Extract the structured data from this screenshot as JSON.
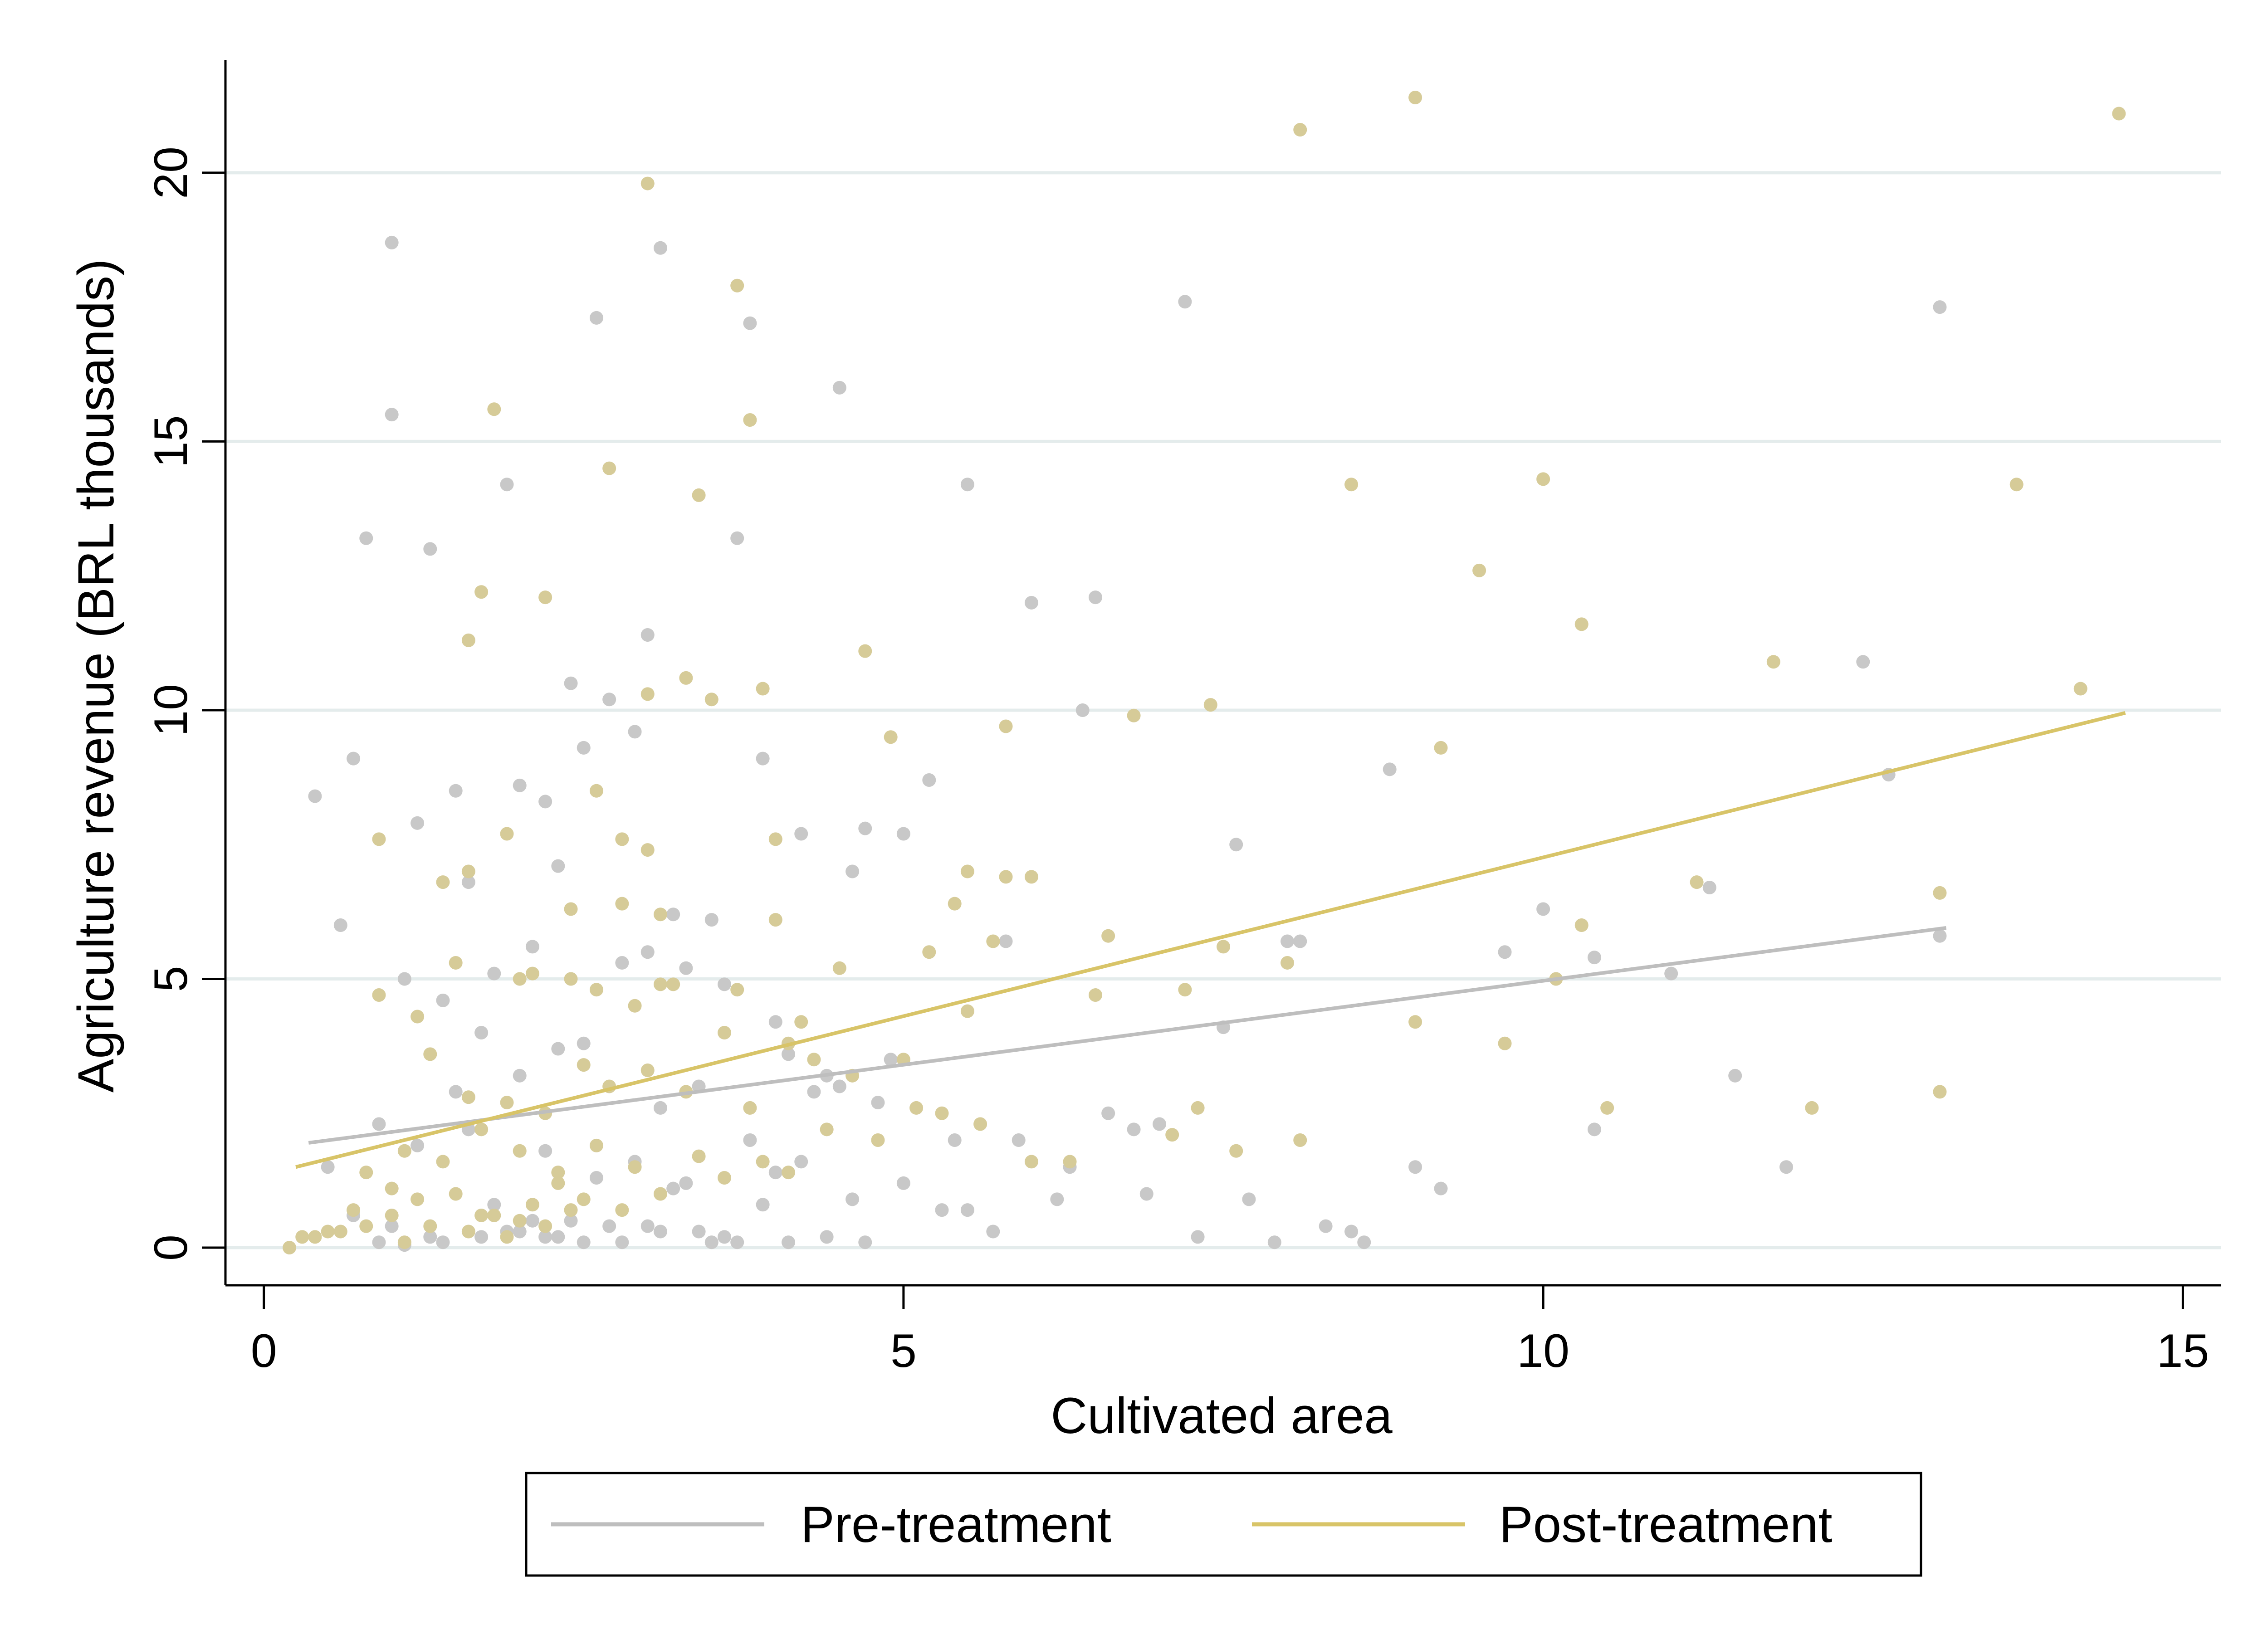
{
  "chart_data": {
    "type": "scatter",
    "xlabel": "Cultivated area",
    "ylabel": "Agriculture revenue (BRL thousands)",
    "xlim": [
      -0.3,
      15.3
    ],
    "ylim": [
      -0.7,
      22.1
    ],
    "x_ticks": [
      0,
      5,
      10,
      15
    ],
    "y_ticks": [
      0,
      5,
      10,
      15,
      20
    ],
    "grid": "horizontal",
    "legend_position": "bottom",
    "colors": {
      "pre": "#c8c8c8",
      "pre_line": "#bebebe",
      "post": "#d6cb98",
      "post_line": "#d8c468",
      "grid": "#e4ecec",
      "axis": "#000000"
    },
    "series": [
      {
        "name": "Pre-treatment",
        "fit_line": {
          "x": [
            0.35,
            13.15
          ],
          "y": [
            1.95,
            5.95
          ]
        },
        "x": [
          1.0,
          1.0,
          3.1,
          2.6,
          4.5,
          3.8,
          5.5,
          0.8,
          1.3,
          1.9,
          3.0,
          2.9,
          2.0,
          1.6,
          0.4,
          0.6,
          0.7,
          1.2,
          1.5,
          2.3,
          2.7,
          3.2,
          3.5,
          2.5,
          2.2,
          3.7,
          3.9,
          4.2,
          4.6,
          4.7,
          5.0,
          5.2,
          6.0,
          6.5,
          6.4,
          7.2,
          7.6,
          8.0,
          8.8,
          9.2,
          9.7,
          10.0,
          10.4,
          11.0,
          11.3,
          11.9,
          12.5,
          12.7,
          13.1,
          13.1,
          2.4,
          1.8,
          1.1,
          0.9,
          2.1,
          3.3,
          4.0,
          4.4,
          4.9,
          5.8,
          6.6,
          7.0,
          7.5,
          8.1,
          8.6,
          9.0,
          10.4,
          11.5,
          1.4,
          2.8,
          3.6,
          4.1,
          5.4,
          0.5,
          1.7,
          2.3,
          3.0,
          3.4,
          4.3,
          4.8,
          5.9,
          6.8,
          1.5,
          2.0,
          2.5,
          3.1,
          3.8,
          4.5,
          0.7,
          1.2,
          1.6,
          2.2,
          2.9,
          3.3,
          4.0,
          4.6,
          5.5,
          6.2,
          6.9,
          7.7,
          8.3,
          1.0,
          1.8,
          2.4,
          2.6,
          3.2,
          3.9,
          4.2,
          5.0,
          5.7,
          6.3,
          7.3,
          7.9,
          8.5,
          1.3,
          1.9,
          2.1,
          2.7,
          3.5,
          4.4,
          0.9,
          1.4,
          2.0,
          2.3,
          2.8,
          3.0,
          3.6,
          4.1,
          4.7,
          5.3,
          1.1,
          1.7,
          2.2,
          2.5,
          3.1,
          3.4,
          3.7
        ],
        "y": [
          18.7,
          15.5,
          18.6,
          17.3,
          16.0,
          17.2,
          14.2,
          13.2,
          13.0,
          14.2,
          11.4,
          9.6,
          8.6,
          6.8,
          8.4,
          6.0,
          9.1,
          7.9,
          8.5,
          7.1,
          10.2,
          6.2,
          6.1,
          9.3,
          8.3,
          13.2,
          9.1,
          7.7,
          7.0,
          7.8,
          7.7,
          8.7,
          12.0,
          12.1,
          10.0,
          17.6,
          7.5,
          5.7,
          8.9,
          1.1,
          5.5,
          6.3,
          2.2,
          5.1,
          6.7,
          1.5,
          10.9,
          8.8,
          17.5,
          5.8,
          10.5,
          5.1,
          5.0,
          2.3,
          5.6,
          5.2,
          4.2,
          3.2,
          3.5,
          5.7,
          2.5,
          2.3,
          4.1,
          5.7,
          0.1,
          1.5,
          5.4,
          3.2,
          4.6,
          5.3,
          4.9,
          3.6,
          2.0,
          1.5,
          4.0,
          3.7,
          5.5,
          3.0,
          2.9,
          2.7,
          2.0,
          2.2,
          2.9,
          3.2,
          3.8,
          2.6,
          2.0,
          3.0,
          0.6,
          1.9,
          2.2,
          1.8,
          1.6,
          1.2,
          1.4,
          0.9,
          0.7,
          0.9,
          1.0,
          0.9,
          0.4,
          0.4,
          0.8,
          0.5,
          1.3,
          1.1,
          0.8,
          1.6,
          1.2,
          0.3,
          1.5,
          0.2,
          0.1,
          0.3,
          0.2,
          0.3,
          0.5,
          0.4,
          0.1,
          0.2,
          0.1,
          0.1,
          0.3,
          0.2,
          0.1,
          0.4,
          0.2,
          0.1,
          0.1,
          0.7,
          0.05,
          0.2,
          0.2,
          0.1,
          0.3,
          0.3,
          0.1
        ]
      },
      {
        "name": "Post-treatment",
        "fit_line": {
          "x": [
            0.25,
            14.55
          ],
          "y": [
            1.5,
            9.95
          ]
        },
        "x": [
          9.0,
          8.1,
          14.5,
          3.0,
          3.7,
          3.8,
          1.8,
          2.7,
          3.4,
          8.5,
          10.0,
          13.7,
          9.5,
          10.3,
          1.7,
          1.6,
          2.2,
          3.3,
          3.0,
          3.5,
          3.9,
          4.7,
          5.8,
          6.8,
          7.4,
          9.2,
          11.8,
          14.2,
          0.9,
          1.9,
          2.8,
          2.6,
          4.0,
          4.0,
          3.0,
          3.1,
          5.5,
          5.4,
          5.8,
          6.0,
          5.7,
          6.6,
          7.5,
          8.0,
          10.3,
          11.2,
          13.1,
          1.4,
          1.6,
          2.0,
          2.4,
          2.8,
          3.1,
          3.7,
          4.2,
          4.5,
          4.9,
          5.2,
          5.5,
          6.5,
          7.2,
          7.3,
          8.1,
          9.0,
          9.7,
          10.1,
          10.5,
          12.1,
          13.1,
          0.9,
          1.2,
          1.5,
          2.1,
          2.4,
          2.6,
          2.9,
          3.2,
          3.6,
          4.1,
          4.3,
          4.6,
          5.0,
          5.3,
          5.6,
          6.0,
          6.3,
          7.1,
          7.6,
          0.5,
          0.8,
          1.1,
          1.3,
          1.6,
          1.9,
          2.2,
          2.5,
          2.7,
          3.0,
          3.3,
          3.8,
          4.4,
          4.8,
          5.1,
          0.4,
          0.7,
          1.0,
          1.4,
          1.7,
          2.0,
          2.3,
          2.6,
          2.9,
          3.4,
          3.9,
          4.1,
          1.2,
          1.5,
          1.8,
          2.1,
          2.3,
          2.5,
          2.8,
          3.1,
          3.6,
          0.2,
          0.3,
          0.6,
          1.1,
          1.3,
          1.6,
          1.7,
          1.9,
          2.0,
          2.2,
          2.4,
          0.8,
          1.0
        ],
        "y": [
          21.4,
          20.8,
          21.1,
          19.8,
          17.9,
          15.4,
          15.6,
          14.5,
          14.0,
          14.2,
          14.3,
          14.2,
          12.6,
          11.6,
          12.2,
          11.3,
          12.1,
          10.6,
          10.3,
          10.2,
          10.4,
          11.1,
          9.7,
          9.9,
          10.1,
          9.3,
          10.9,
          10.4,
          7.6,
          7.7,
          7.6,
          8.5,
          7.6,
          6.1,
          7.4,
          6.2,
          7.0,
          6.4,
          6.9,
          6.9,
          5.7,
          5.8,
          5.6,
          5.3,
          6.0,
          6.8,
          6.6,
          6.8,
          7.0,
          5.0,
          6.3,
          6.4,
          4.9,
          4.8,
          4.2,
          5.2,
          9.5,
          5.5,
          4.4,
          4.7,
          4.8,
          2.6,
          2.0,
          4.2,
          3.8,
          5.0,
          2.6,
          2.6,
          2.9,
          4.7,
          4.3,
          5.3,
          5.1,
          5.0,
          4.8,
          4.5,
          4.9,
          4.0,
          3.8,
          3.5,
          3.2,
          3.5,
          2.5,
          2.3,
          1.6,
          1.6,
          2.1,
          1.8,
          0.3,
          1.4,
          1.8,
          3.6,
          2.8,
          2.7,
          2.5,
          3.4,
          3.0,
          3.3,
          2.9,
          2.6,
          2.2,
          2.0,
          2.6,
          0.2,
          0.7,
          1.1,
          1.6,
          2.2,
          1.8,
          1.4,
          1.9,
          1.5,
          1.7,
          1.6,
          1.4,
          0.9,
          1.0,
          0.6,
          0.8,
          1.2,
          0.9,
          0.7,
          1.0,
          1.3,
          0.0,
          0.2,
          0.3,
          0.1,
          0.4,
          0.3,
          0.6,
          0.2,
          0.5,
          0.4,
          0.7,
          0.4,
          0.6
        ]
      }
    ]
  }
}
